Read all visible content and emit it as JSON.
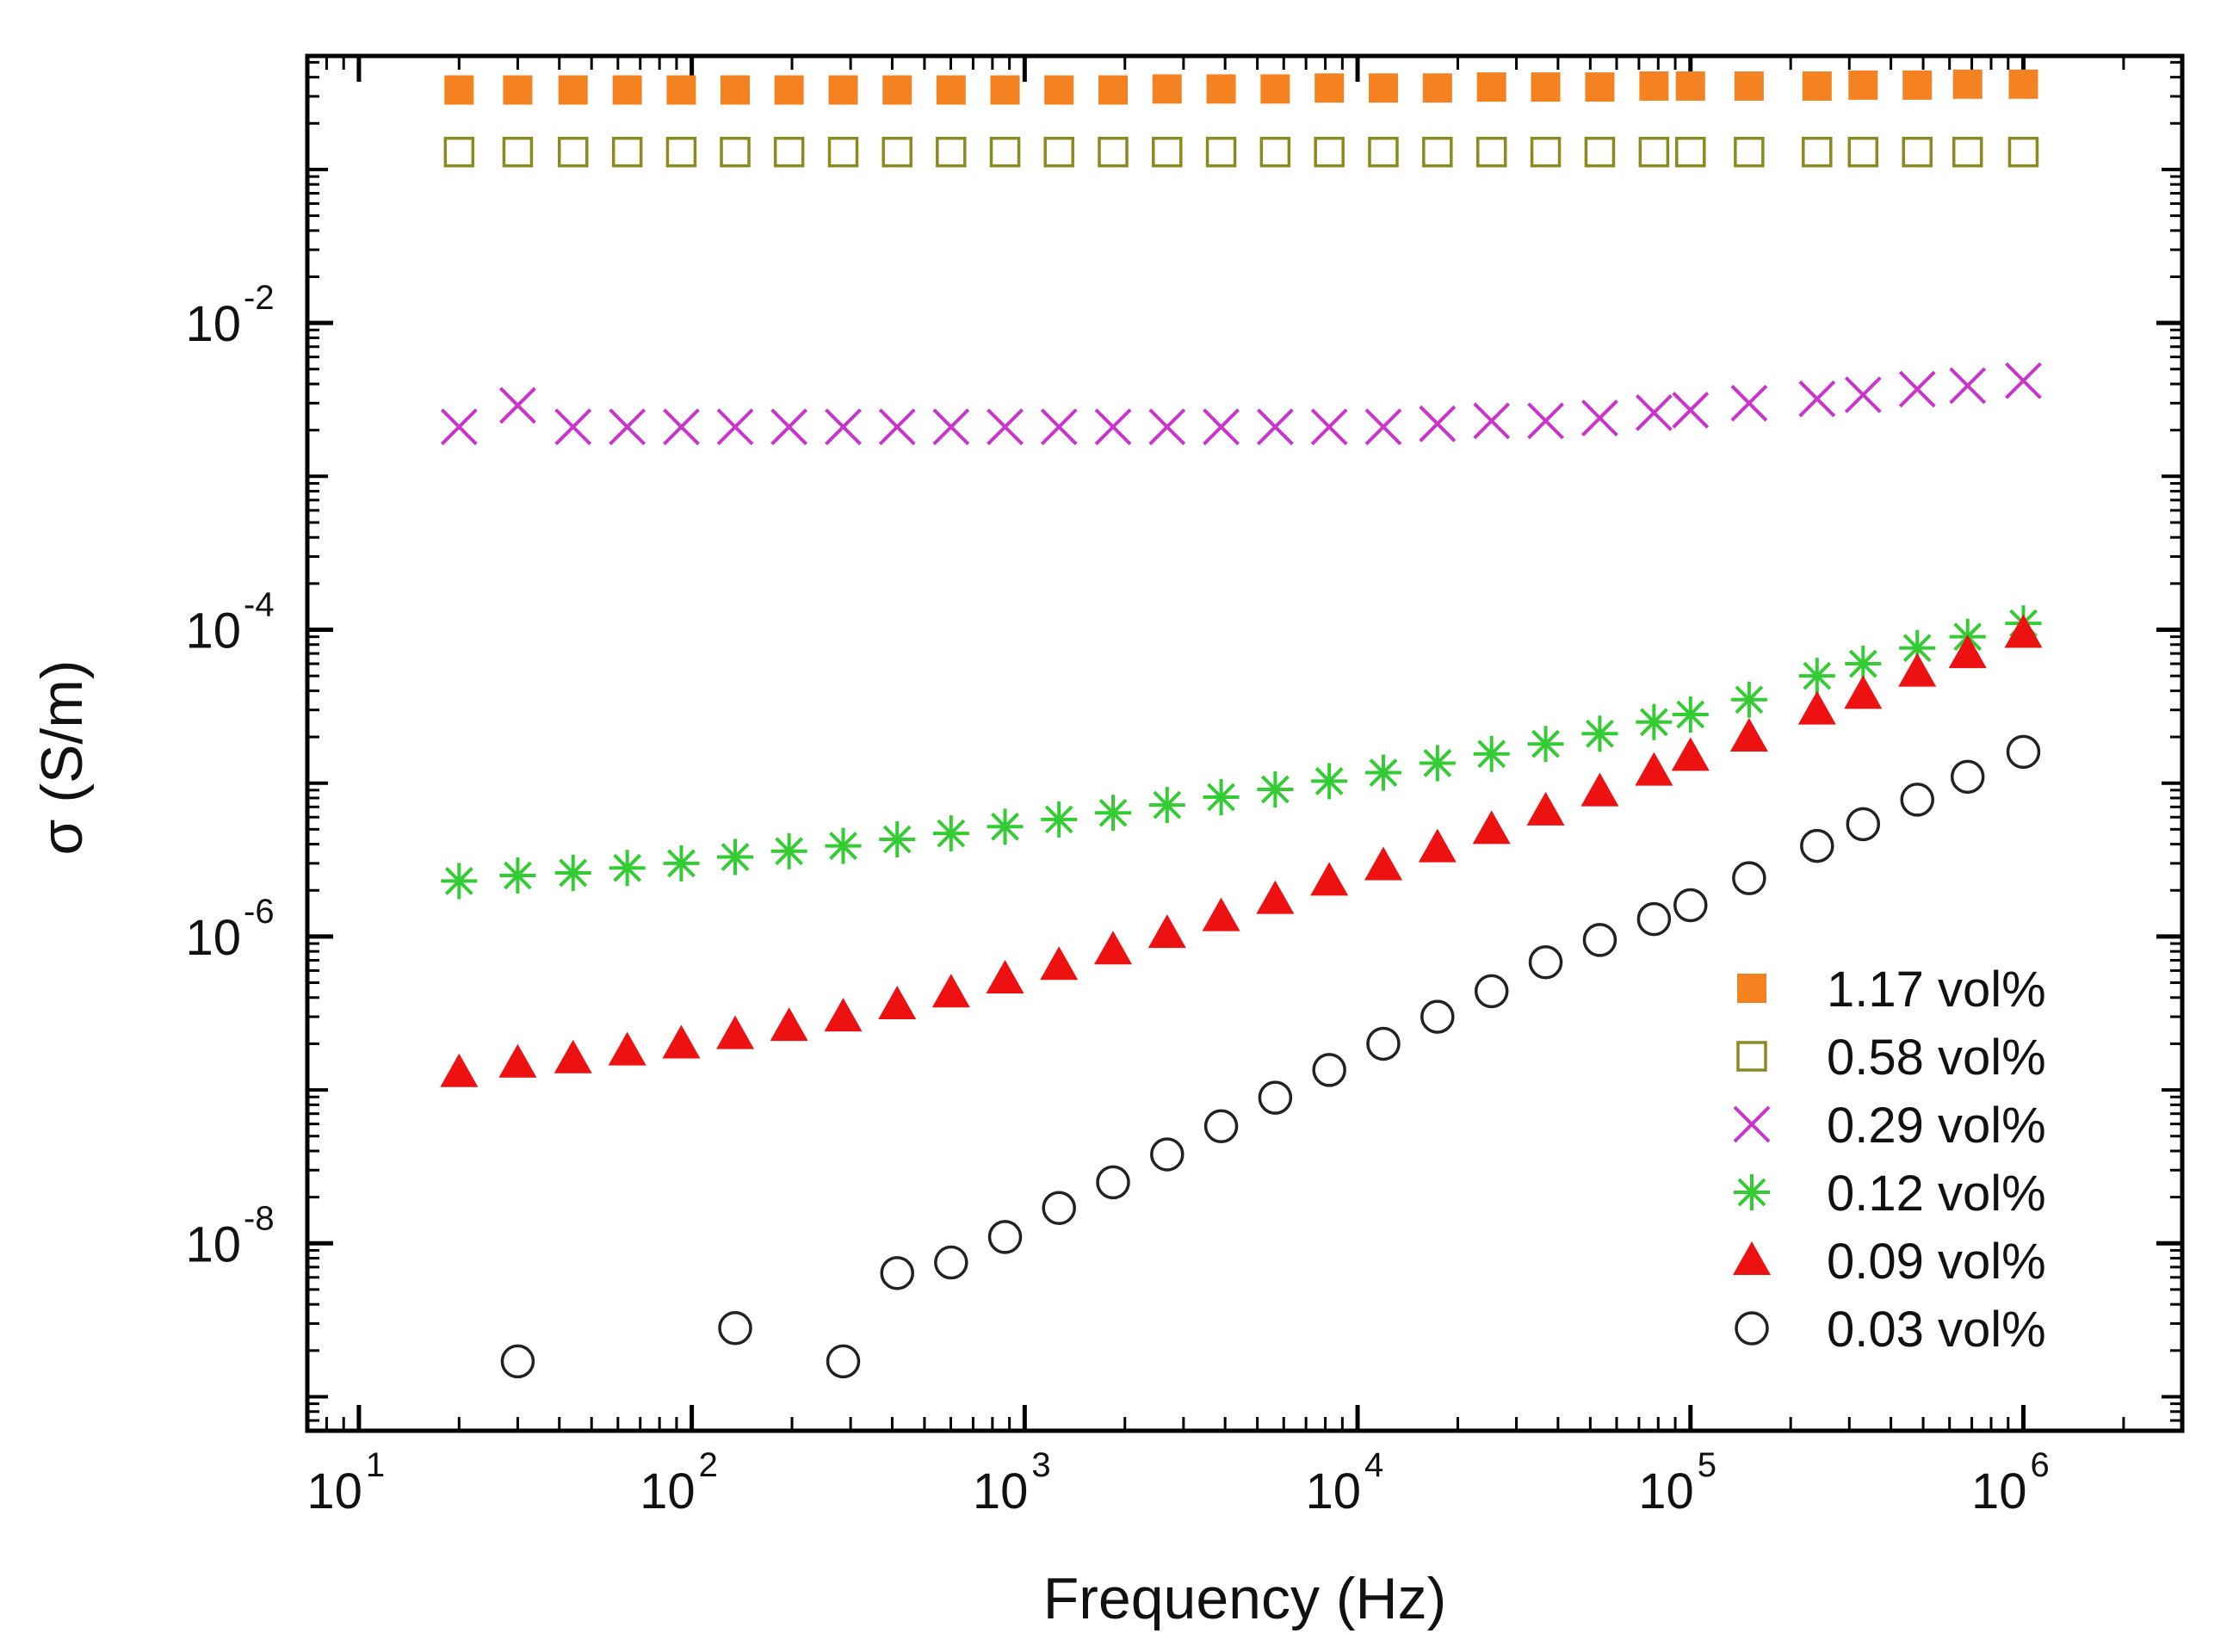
{
  "chart_data": {
    "type": "scatter",
    "x_scale": "log",
    "y_scale": "log",
    "xlim": [
      7,
      3000000
    ],
    "ylim": [
      6e-10,
      0.55
    ],
    "xlabel": "Frequency (Hz)",
    "ylabel": "σ (S/m)",
    "x_ticks": [
      {
        "value": 10,
        "base": "10",
        "exp": "1"
      },
      {
        "value": 100,
        "base": "10",
        "exp": "2"
      },
      {
        "value": 1000,
        "base": "10",
        "exp": "3"
      },
      {
        "value": 10000,
        "base": "10",
        "exp": "4"
      },
      {
        "value": 100000,
        "base": "10",
        "exp": "5"
      },
      {
        "value": 1000000,
        "base": "10",
        "exp": "6"
      }
    ],
    "y_ticks": [
      {
        "value": 0.01,
        "base": "10",
        "exp": "-2"
      },
      {
        "value": 0.0001,
        "base": "10",
        "exp": "-4"
      },
      {
        "value": 1e-06,
        "base": "10",
        "exp": "-6"
      },
      {
        "value": 1e-08,
        "base": "10",
        "exp": "-8"
      }
    ],
    "legend_position": "bottom-right",
    "series": [
      {
        "name": "1.17 vol%",
        "marker": "filled-square",
        "color": "#f58220",
        "x": [
          20,
          30,
          44,
          64,
          93,
          135,
          196,
          285,
          414,
          601,
          873,
          1268,
          1843,
          2678,
          3892,
          5657,
          8222,
          11951,
          17374,
          25260,
          36727,
          53411,
          77690,
          100000,
          150000,
          240000,
          330000,
          480000,
          680000,
          1000000
        ],
        "y": [
          0.33,
          0.33,
          0.33,
          0.33,
          0.33,
          0.33,
          0.33,
          0.33,
          0.33,
          0.33,
          0.33,
          0.33,
          0.33,
          0.335,
          0.335,
          0.335,
          0.34,
          0.34,
          0.34,
          0.345,
          0.345,
          0.345,
          0.35,
          0.35,
          0.35,
          0.35,
          0.355,
          0.355,
          0.36,
          0.36
        ]
      },
      {
        "name": "0.58 vol%",
        "marker": "open-square",
        "color": "#8a8a1e",
        "x": [
          20,
          30,
          44,
          64,
          93,
          135,
          196,
          285,
          414,
          601,
          873,
          1268,
          1843,
          2678,
          3892,
          5657,
          8222,
          11951,
          17374,
          25260,
          36727,
          53411,
          77690,
          100000,
          150000,
          240000,
          330000,
          480000,
          680000,
          1000000
        ],
        "y": [
          0.13,
          0.13,
          0.13,
          0.13,
          0.13,
          0.13,
          0.13,
          0.13,
          0.13,
          0.13,
          0.13,
          0.13,
          0.13,
          0.13,
          0.13,
          0.13,
          0.13,
          0.13,
          0.13,
          0.13,
          0.13,
          0.13,
          0.13,
          0.13,
          0.13,
          0.13,
          0.13,
          0.13,
          0.13,
          0.13
        ]
      },
      {
        "name": "0.29 vol%",
        "marker": "cross",
        "color": "#cc33cc",
        "x": [
          20,
          30,
          44,
          64,
          93,
          135,
          196,
          285,
          414,
          601,
          873,
          1268,
          1843,
          2678,
          3892,
          5657,
          8222,
          11951,
          17374,
          25260,
          36727,
          53411,
          77690,
          100000,
          150000,
          240000,
          330000,
          480000,
          680000,
          1000000
        ],
        "y": [
          0.0021,
          0.0029,
          0.0021,
          0.0021,
          0.0021,
          0.0021,
          0.0021,
          0.0021,
          0.0021,
          0.0021,
          0.0021,
          0.0021,
          0.0021,
          0.0021,
          0.0021,
          0.0021,
          0.0021,
          0.0021,
          0.0022,
          0.0023,
          0.0023,
          0.0024,
          0.0026,
          0.0027,
          0.003,
          0.0032,
          0.0034,
          0.0037,
          0.0039,
          0.0042
        ]
      },
      {
        "name": "0.12 vol%",
        "marker": "asterisk",
        "color": "#33cc33",
        "x": [
          20,
          30,
          44,
          64,
          93,
          135,
          196,
          285,
          414,
          601,
          873,
          1268,
          1843,
          2678,
          3892,
          5657,
          8222,
          11951,
          17374,
          25260,
          36727,
          53411,
          77690,
          100000,
          150000,
          240000,
          330000,
          480000,
          680000,
          1000000
        ],
        "y": [
          2.3e-06,
          2.5e-06,
          2.6e-06,
          2.8e-06,
          3e-06,
          3.3e-06,
          3.6e-06,
          3.9e-06,
          4.3e-06,
          4.7e-06,
          5.2e-06,
          5.8e-06,
          6.4e-06,
          7.2e-06,
          8.1e-06,
          9.1e-06,
          1.03e-05,
          1.17e-05,
          1.35e-05,
          1.55e-05,
          1.8e-05,
          2.1e-05,
          2.5e-05,
          2.8e-05,
          3.5e-05,
          5e-05,
          6e-05,
          7.6e-05,
          9e-05,
          0.00011
        ]
      },
      {
        "name": "0.09 vol%",
        "marker": "filled-triangle",
        "color": "#ee1111",
        "x": [
          20,
          30,
          44,
          64,
          93,
          135,
          196,
          285,
          414,
          601,
          873,
          1268,
          1843,
          2678,
          3892,
          5657,
          8222,
          11951,
          17374,
          25260,
          36727,
          53411,
          77690,
          100000,
          150000,
          240000,
          330000,
          480000,
          680000,
          1000000
        ],
        "y": [
          1.3e-07,
          1.5e-07,
          1.6e-07,
          1.8e-07,
          2e-07,
          2.3e-07,
          2.6e-07,
          3e-07,
          3.6e-07,
          4.3e-07,
          5.3e-07,
          6.5e-07,
          8.2e-07,
          1.05e-06,
          1.35e-06,
          1.75e-06,
          2.3e-06,
          2.9e-06,
          3.8e-06,
          5e-06,
          6.6e-06,
          8.8e-06,
          1.2e-05,
          1.5e-05,
          2e-05,
          3e-05,
          3.8e-05,
          5.3e-05,
          7e-05,
          9.5e-05
        ]
      },
      {
        "name": "0.03 vol%",
        "marker": "open-circle",
        "color": "#222222",
        "x": [
          30,
          135,
          285,
          414,
          601,
          873,
          1268,
          1843,
          2678,
          3892,
          5657,
          8222,
          11951,
          17374,
          25260,
          36727,
          53411,
          77690,
          100000,
          150000,
          240000,
          330000,
          480000,
          680000,
          1000000
        ],
        "y": [
          1.7e-09,
          2.8e-09,
          1.7e-09,
          6.4e-09,
          7.5e-09,
          1.1e-08,
          1.7e-08,
          2.5e-08,
          3.8e-08,
          5.8e-08,
          8.9e-08,
          1.35e-07,
          2e-07,
          3e-07,
          4.4e-07,
          6.8e-07,
          9.5e-07,
          1.3e-06,
          1.6e-06,
          2.4e-06,
          3.9e-06,
          5.4e-06,
          7.8e-06,
          1.1e-05,
          1.6e-05
        ]
      }
    ]
  }
}
